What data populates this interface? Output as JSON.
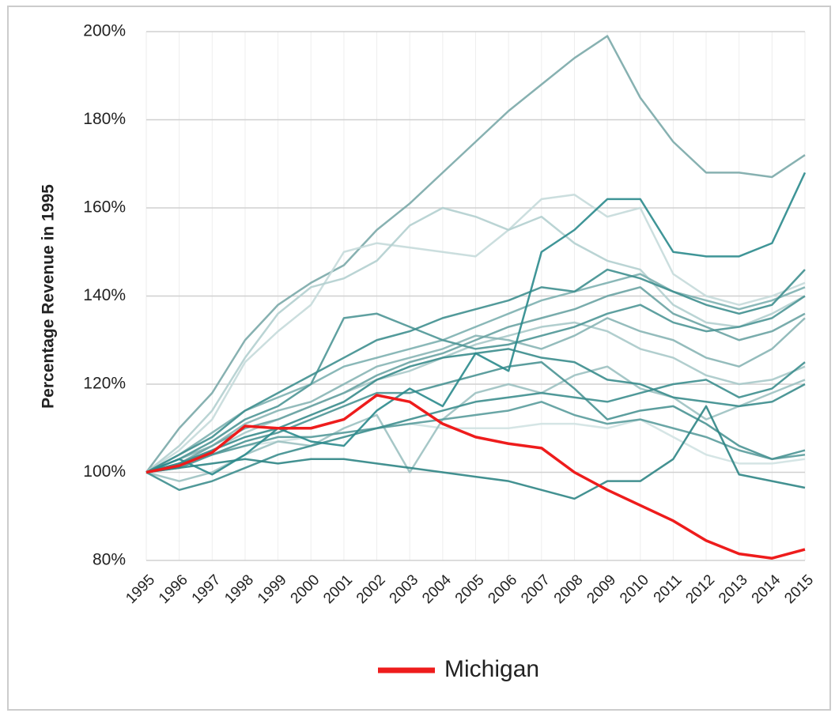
{
  "chart_data": {
    "type": "line",
    "y_label": "Percentage Revenue in 1995",
    "categories": [
      "1995",
      "1996",
      "1997",
      "1998",
      "1999",
      "2000",
      "2001",
      "2002",
      "2003",
      "2004",
      "2005",
      "2006",
      "2007",
      "2008",
      "2009",
      "2010",
      "2011",
      "2012",
      "2013",
      "2014",
      "2015"
    ],
    "ylim": [
      80,
      200
    ],
    "yticks": [
      {
        "value": 80,
        "label": "80%"
      },
      {
        "value": 100,
        "label": "100%"
      },
      {
        "value": 120,
        "label": "120%"
      },
      {
        "value": 140,
        "label": "140%"
      },
      {
        "value": 160,
        "label": "160%"
      },
      {
        "value": 180,
        "label": "180%"
      },
      {
        "value": 200,
        "label": "200%"
      }
    ],
    "grid": true,
    "legend": "bottom",
    "series": [
      {
        "color": "#7aa9a8",
        "values": [
          100,
          110,
          118,
          130,
          138,
          143,
          147,
          155,
          161,
          168,
          175,
          182,
          188,
          194,
          199,
          185,
          175,
          168,
          168,
          167,
          172
        ]
      },
      {
        "color": "#c5dada",
        "values": [
          100,
          105,
          112,
          125,
          132,
          138,
          150,
          152,
          151,
          150,
          149,
          155,
          162,
          163,
          158,
          160,
          145,
          140,
          138,
          140,
          143
        ]
      },
      {
        "color": "#b3cfcf",
        "values": [
          100,
          106,
          114,
          126,
          136,
          142,
          144,
          148,
          156,
          160,
          158,
          155,
          158,
          152,
          148,
          146,
          138,
          134,
          133,
          136,
          140
        ]
      },
      {
        "color": "#d0e2e2",
        "values": [
          100,
          102,
          104,
          106,
          107,
          108,
          109,
          110,
          111,
          110,
          110,
          110,
          111,
          111,
          110,
          112,
          108,
          104,
          102,
          102,
          103
        ]
      },
      {
        "color": "#a9c9c9",
        "values": [
          100,
          102,
          105,
          109,
          112,
          115,
          118,
          121,
          123,
          126,
          129,
          131,
          133,
          134,
          132,
          128,
          126,
          122,
          120,
          121,
          124
        ]
      },
      {
        "color": "#9cc1c1",
        "values": [
          100,
          98,
          100,
          104,
          107,
          106,
          110,
          113,
          100,
          112,
          118,
          120,
          118,
          122,
          124,
          119,
          117,
          112,
          115,
          118,
          121
        ]
      },
      {
        "color": "#88b5b5",
        "values": [
          100,
          103,
          106,
          111,
          114,
          116,
          120,
          124,
          126,
          128,
          131,
          130,
          128,
          131,
          135,
          132,
          130,
          126,
          124,
          128,
          135
        ]
      },
      {
        "color": "#7db0b0",
        "values": [
          100,
          104,
          109,
          114,
          117,
          120,
          124,
          126,
          128,
          130,
          133,
          136,
          139,
          141,
          143,
          145,
          141,
          139,
          137,
          139,
          142
        ]
      },
      {
        "color": "#6aa3a3",
        "values": [
          100,
          102,
          106,
          110,
          112,
          115,
          118,
          122,
          125,
          127,
          130,
          133,
          135,
          137,
          140,
          142,
          136,
          133,
          130,
          132,
          136
        ]
      },
      {
        "color": "#5a9c9c",
        "values": [
          100,
          102,
          104,
          106,
          108,
          108,
          109,
          110,
          111,
          112,
          113,
          114,
          116,
          113,
          111,
          112,
          110,
          108,
          105,
          103,
          104
        ]
      },
      {
        "color": "#4e9696",
        "values": [
          100,
          103,
          107,
          112,
          115,
          120,
          135,
          136,
          133,
          130,
          128,
          129,
          131,
          133,
          136,
          138,
          134,
          132,
          133,
          135,
          140
        ]
      },
      {
        "color": "#4a9393",
        "values": [
          100,
          101,
          104,
          107,
          109,
          112,
          115,
          118,
          118,
          120,
          122,
          124,
          125,
          119,
          112,
          114,
          115,
          111,
          106,
          103,
          105
        ]
      },
      {
        "color": "#3f8f8f",
        "values": [
          100,
          104,
          108,
          114,
          118,
          122,
          126,
          130,
          132,
          135,
          137,
          139,
          142,
          141,
          146,
          144,
          141,
          138,
          136,
          138,
          146
        ]
      },
      {
        "color": "#3d8e8e",
        "values": [
          100,
          96,
          98,
          101,
          104,
          106,
          108,
          110,
          112,
          114,
          116,
          117,
          118,
          117,
          116,
          118,
          120,
          121,
          117,
          119,
          125
        ]
      },
      {
        "color": "#3a8c8c",
        "values": [
          100,
          102,
          105,
          108,
          110,
          113,
          116,
          121,
          124,
          126,
          127,
          128,
          126,
          125,
          121,
          120,
          117,
          116,
          115,
          116,
          120
        ]
      },
      {
        "color": "#2f8585",
        "values": [
          100,
          101,
          102,
          103,
          102,
          103,
          103,
          102,
          101,
          100,
          99,
          98,
          96,
          94,
          98,
          98,
          103,
          115,
          99.5,
          98,
          96.5
        ]
      },
      {
        "color": "#2a8a8c",
        "values": [
          100,
          103,
          99.5,
          104,
          110,
          107,
          106,
          114,
          119,
          115,
          127,
          123,
          150,
          155,
          162,
          162,
          150,
          149,
          149,
          152,
          168
        ]
      },
      {
        "name": "Michigan",
        "color": "#ee1c1c",
        "values": [
          100,
          101.5,
          104.5,
          110.5,
          110,
          110,
          112,
          117.5,
          116,
          111,
          108,
          106.5,
          105.5,
          100,
          96,
          92.5,
          89,
          84.5,
          81.5,
          80.5,
          82.5
        ]
      }
    ]
  }
}
